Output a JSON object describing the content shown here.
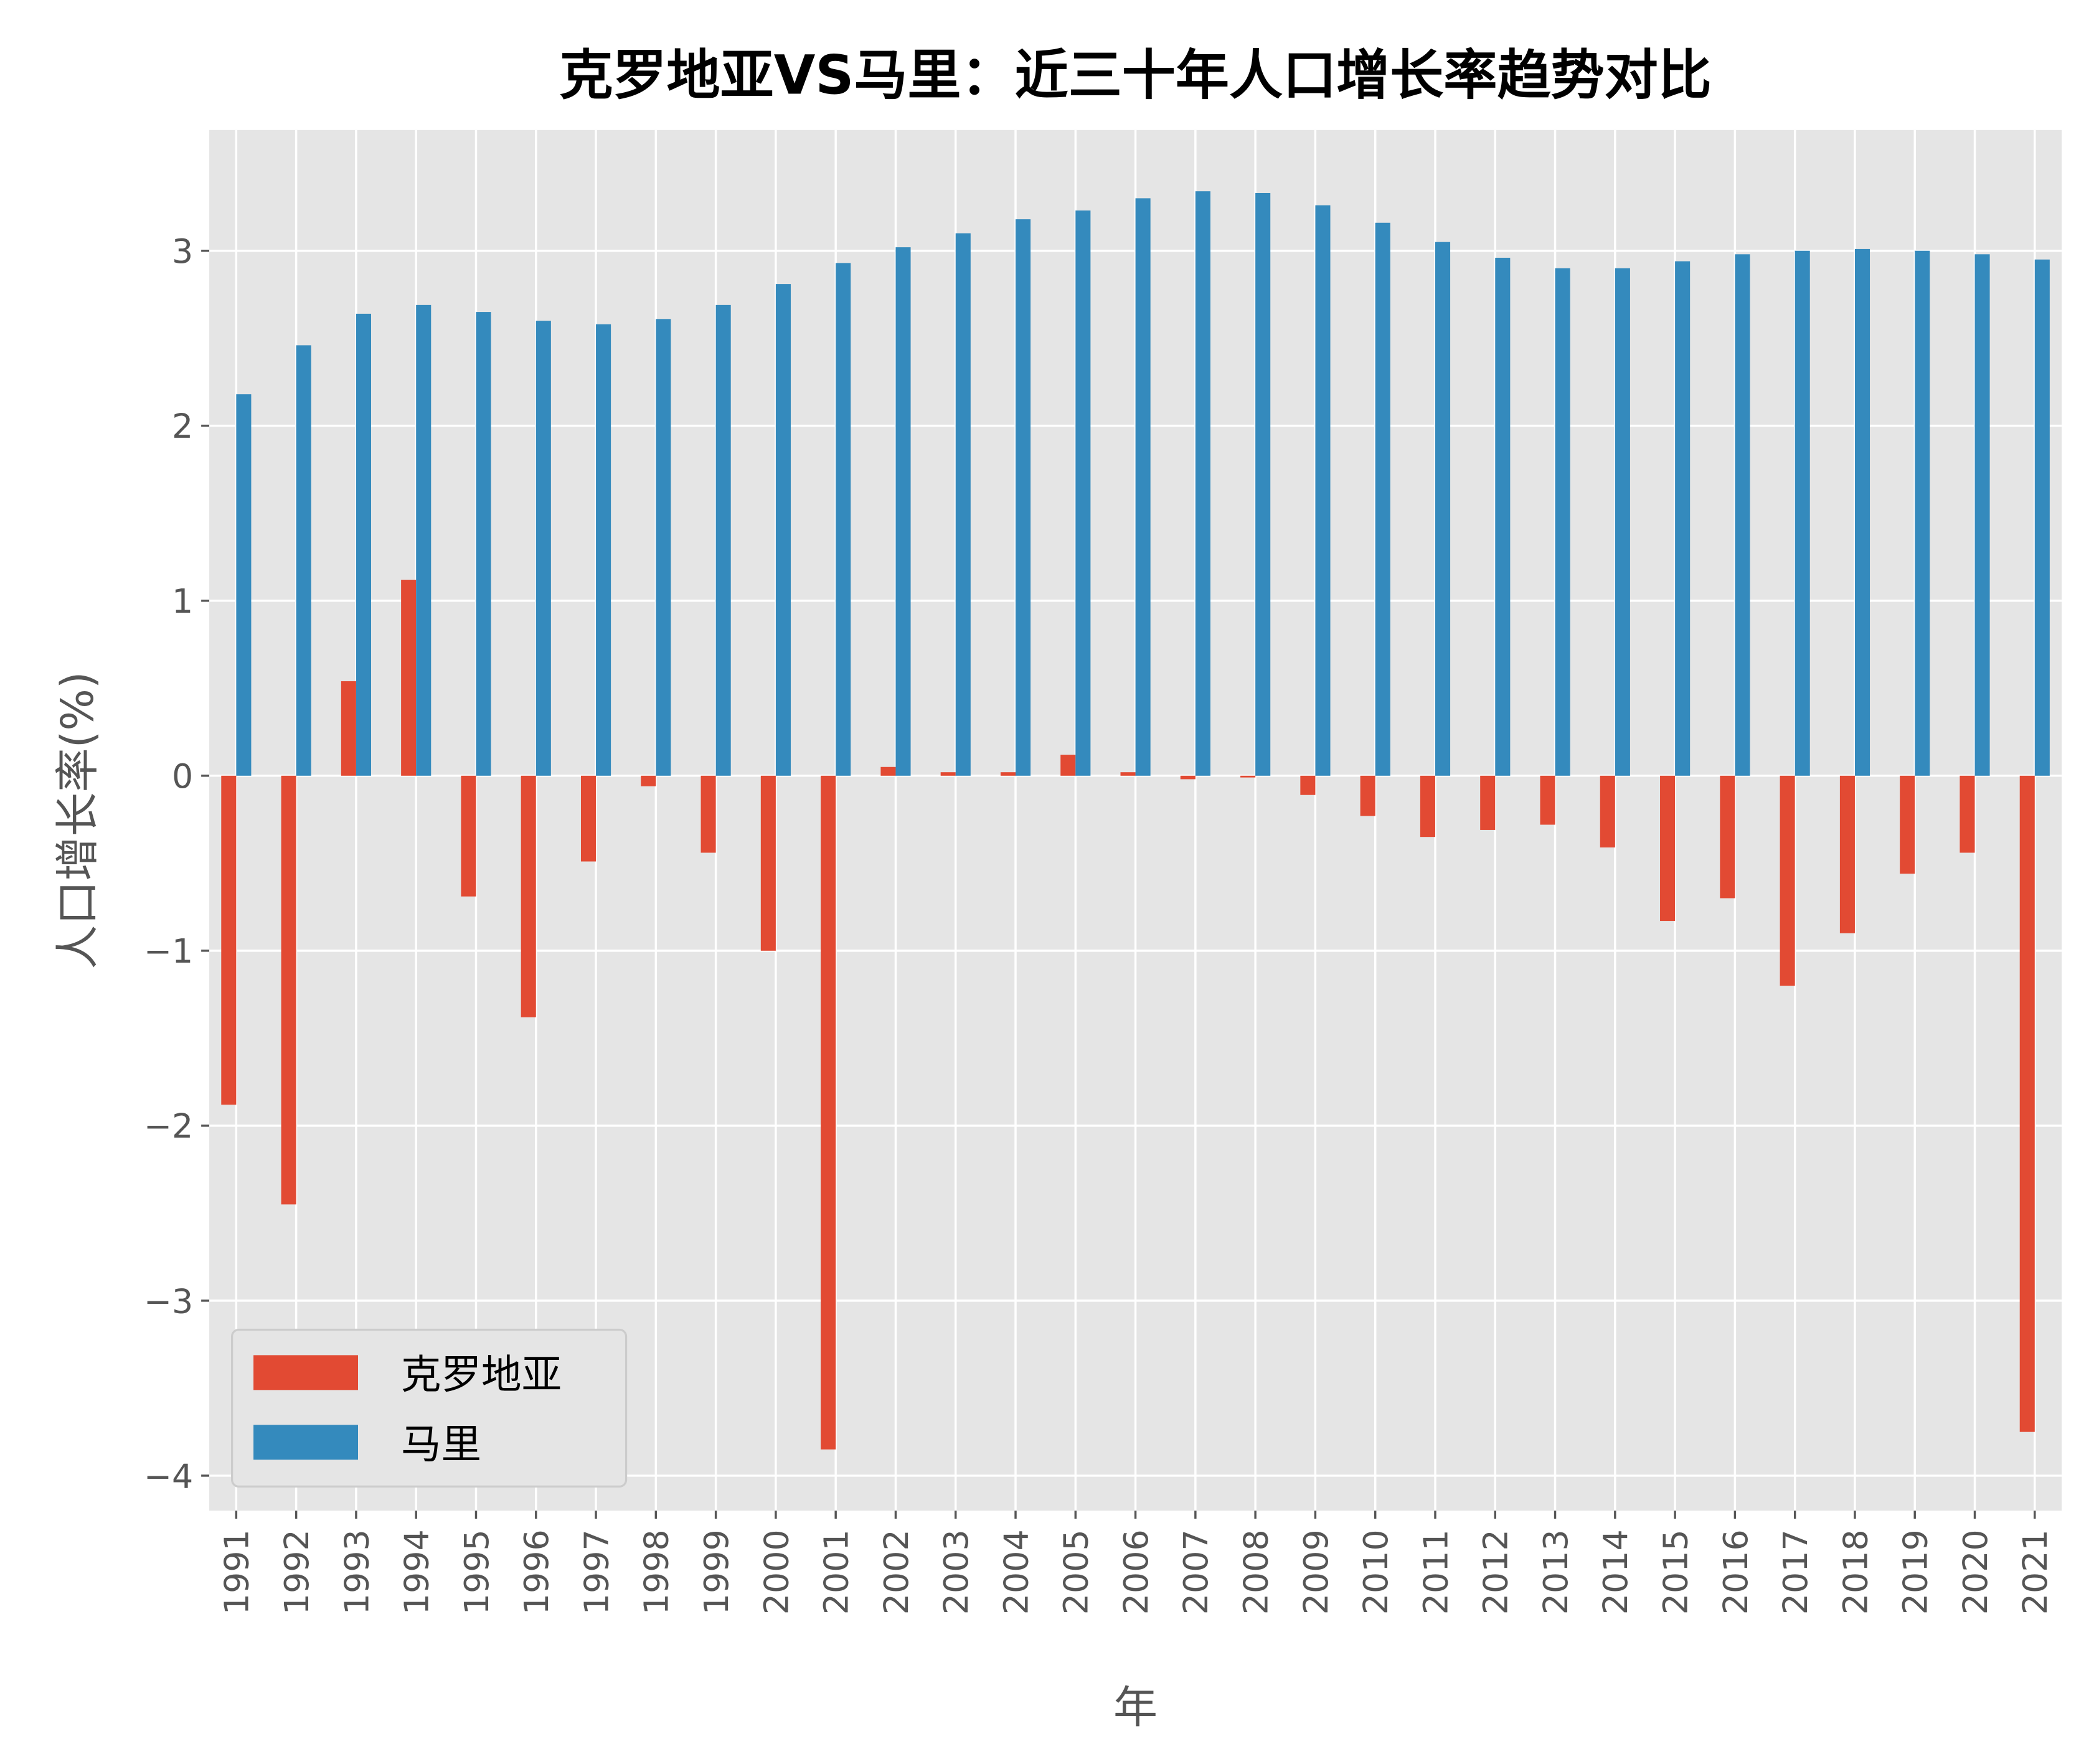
{
  "chart_data": {
    "type": "bar",
    "title": "克罗地亚VS马里：近三十年人口增长率趋势对比",
    "xlabel": "年",
    "ylabel": "人口增长率(%)",
    "ylim": [
      -4.2,
      3.69
    ],
    "yticks": [
      -4,
      -3,
      -2,
      -1,
      0,
      1,
      2,
      3
    ],
    "grid": true,
    "legend_placement": "lower-left",
    "background": "#E5E5E5",
    "categories": [
      "1991",
      "1992",
      "1993",
      "1994",
      "1995",
      "1996",
      "1997",
      "1998",
      "1999",
      "2000",
      "2001",
      "2002",
      "2003",
      "2004",
      "2005",
      "2006",
      "2007",
      "2008",
      "2009",
      "2010",
      "2011",
      "2012",
      "2013",
      "2014",
      "2015",
      "2016",
      "2017",
      "2018",
      "2019",
      "2020",
      "2021"
    ],
    "series": [
      {
        "name": "克罗地亚",
        "color": "#E24A33",
        "values": [
          -1.88,
          -2.45,
          0.54,
          1.12,
          -0.69,
          -1.38,
          -0.49,
          -0.06,
          -0.44,
          -1.0,
          -3.85,
          0.05,
          0.02,
          0.02,
          0.12,
          0.02,
          -0.02,
          -0.01,
          -0.11,
          -0.23,
          -0.35,
          -0.31,
          -0.28,
          -0.41,
          -0.83,
          -0.7,
          -1.2,
          -0.9,
          -0.56,
          -0.44,
          -3.75
        ]
      },
      {
        "name": "马里",
        "color": "#348ABD",
        "values": [
          2.18,
          2.46,
          2.64,
          2.69,
          2.65,
          2.6,
          2.58,
          2.61,
          2.69,
          2.81,
          2.93,
          3.02,
          3.1,
          3.18,
          3.23,
          3.3,
          3.34,
          3.33,
          3.26,
          3.16,
          3.05,
          2.96,
          2.9,
          2.9,
          2.94,
          2.98,
          3.0,
          3.01,
          3.0,
          2.98,
          2.95
        ]
      }
    ]
  }
}
